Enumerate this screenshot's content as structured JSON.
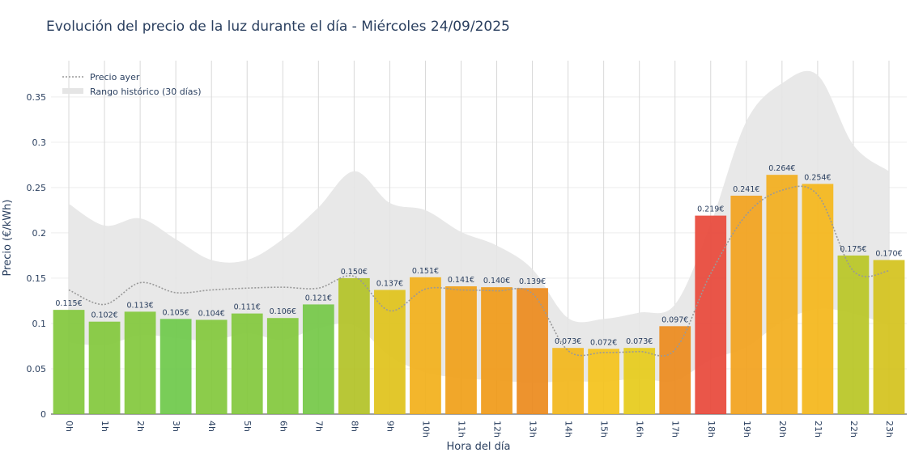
{
  "chart_data": {
    "type": "bar",
    "title": "Evolución del precio de la luz durante el día - Miércoles 24/09/2025",
    "xlabel": "Hora del día",
    "ylabel": "Precio (€/kWh)",
    "ylim": [
      0,
      0.39
    ],
    "yticks": [
      0,
      0.05,
      0.1,
      0.15,
      0.2,
      0.25,
      0.3,
      0.35
    ],
    "ytick_labels": [
      "0",
      "0.05",
      "0.1",
      "0.15",
      "0.2",
      "0.25",
      "0.3",
      "0.35"
    ],
    "grid": true,
    "legend_position": "top-left",
    "categories": [
      "0h",
      "1h",
      "2h",
      "3h",
      "4h",
      "5h",
      "6h",
      "7h",
      "8h",
      "9h",
      "10h",
      "11h",
      "12h",
      "13h",
      "14h",
      "15h",
      "16h",
      "17h",
      "18h",
      "19h",
      "20h",
      "21h",
      "22h",
      "23h"
    ],
    "series": [
      {
        "type": "bar",
        "values": [
          0.115,
          0.102,
          0.113,
          0.105,
          0.104,
          0.111,
          0.106,
          0.121,
          0.15,
          0.137,
          0.151,
          0.141,
          0.14,
          0.139,
          0.073,
          0.072,
          0.073,
          0.097,
          0.219,
          0.241,
          0.264,
          0.254,
          0.175,
          0.17
        ],
        "labels": [
          "0.115€",
          "0.102€",
          "0.113€",
          "0.105€",
          "0.104€",
          "0.111€",
          "0.106€",
          "0.121€",
          "0.150€",
          "0.137€",
          "0.151€",
          "0.141€",
          "0.140€",
          "0.139€",
          "0.073€",
          "0.072€",
          "0.073€",
          "0.097€",
          "0.219€",
          "0.241€",
          "0.264€",
          "0.254€",
          "0.175€",
          "0.170€"
        ],
        "colors": [
          "#82c83c",
          "#82c83c",
          "#82c83c",
          "#6ec94a",
          "#82c83c",
          "#82c83c",
          "#82c83c",
          "#74c847",
          "#b2c226",
          "#e0c21a",
          "#f2b01a",
          "#f0a018",
          "#f09a18",
          "#ec8a1c",
          "#f2b61a",
          "#f4c21a",
          "#e6cb1a",
          "#ec8a1c",
          "#e8483a",
          "#f2a21c",
          "#f2ae1c",
          "#f4b61a",
          "#b8c624",
          "#d4c21c"
        ]
      },
      {
        "name": "Precio ayer",
        "type": "line",
        "style": "dotted",
        "color": "#999999",
        "values": [
          0.137,
          0.121,
          0.145,
          0.134,
          0.137,
          0.139,
          0.14,
          0.139,
          0.152,
          0.114,
          0.138,
          0.137,
          0.136,
          0.133,
          0.07,
          0.068,
          0.069,
          0.071,
          0.155,
          0.22,
          0.247,
          0.242,
          0.158,
          0.158
        ]
      },
      {
        "name": "Rango histórico (30 días)",
        "type": "area",
        "color": "#e5e5e5",
        "upper": [
          0.232,
          0.208,
          0.216,
          0.193,
          0.17,
          0.17,
          0.193,
          0.228,
          0.268,
          0.233,
          0.225,
          0.201,
          0.186,
          0.16,
          0.106,
          0.105,
          0.112,
          0.121,
          0.21,
          0.323,
          0.365,
          0.374,
          0.297,
          0.268
        ],
        "lower": [
          0.079,
          0.076,
          0.087,
          0.084,
          0.081,
          0.089,
          0.082,
          0.095,
          0.098,
          0.064,
          0.046,
          0.04,
          0.037,
          0.035,
          0.036,
          0.036,
          0.039,
          0.037,
          0.06,
          0.074,
          0.102,
          0.116,
          0.111,
          0.098
        ]
      }
    ]
  }
}
